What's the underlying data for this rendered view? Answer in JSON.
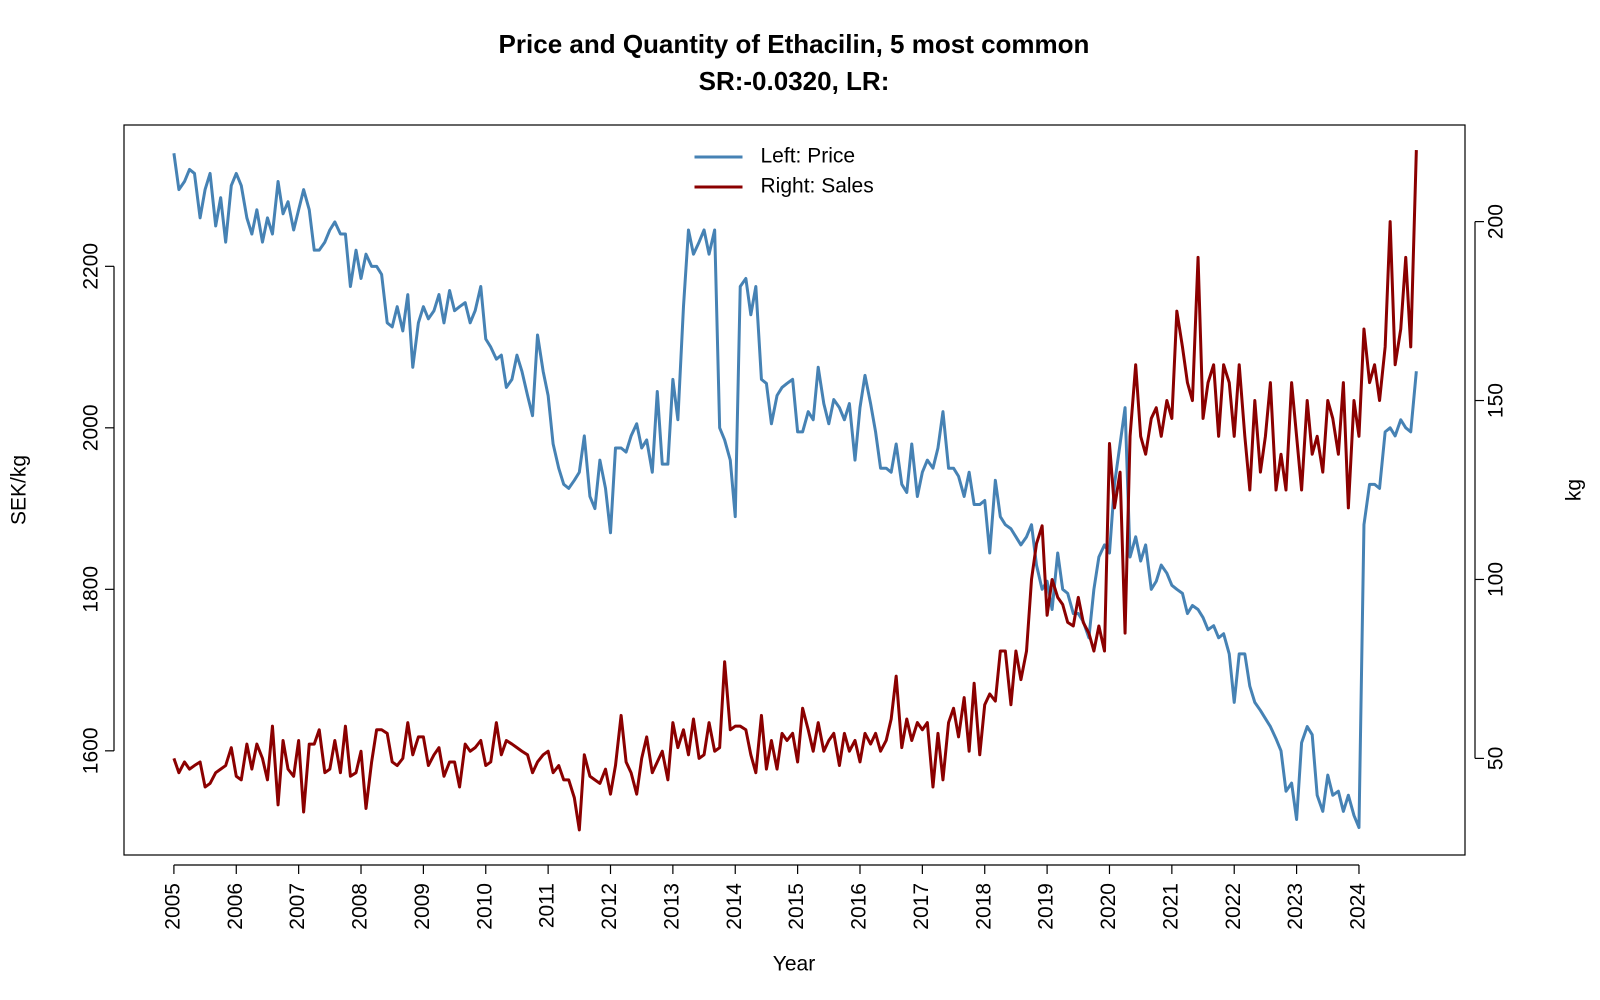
{
  "chart_data": {
    "type": "line",
    "title": "Price and Quantity of Ethacilin, 5 most common",
    "subtitle": "SR:-0.0320, LR:",
    "x_label": "Year",
    "y_label": "SEK/kg",
    "y2_label": "kg",
    "legend": "top",
    "xlim": [
      2004.2,
      2025.7
    ],
    "xticks": [
      2005,
      2006,
      2007,
      2008,
      2009,
      2010,
      2011,
      2012,
      2013,
      2014,
      2015,
      2016,
      2017,
      2018,
      2019,
      2020,
      2021,
      2022,
      2023,
      2024
    ],
    "ylim": [
      1471,
      2375
    ],
    "yticks": [
      1600,
      1800,
      2000,
      2200
    ],
    "y2lim": [
      23,
      227
    ],
    "y2ticks": [
      50,
      100,
      150,
      200
    ],
    "x": [
      2005,
      2005.08,
      2005.17,
      2005.25,
      2005.33,
      2005.42,
      2005.5,
      2005.58,
      2005.67,
      2005.75,
      2005.83,
      2005.92,
      2006,
      2006.08,
      2006.17,
      2006.25,
      2006.33,
      2006.42,
      2006.5,
      2006.58,
      2006.67,
      2006.75,
      2006.83,
      2006.92,
      2007,
      2007.08,
      2007.17,
      2007.25,
      2007.33,
      2007.42,
      2007.5,
      2007.58,
      2007.67,
      2007.75,
      2007.83,
      2007.92,
      2008,
      2008.08,
      2008.17,
      2008.25,
      2008.33,
      2008.42,
      2008.5,
      2008.58,
      2008.67,
      2008.75,
      2008.83,
      2008.92,
      2009,
      2009.08,
      2009.17,
      2009.25,
      2009.33,
      2009.42,
      2009.5,
      2009.58,
      2009.67,
      2009.75,
      2009.83,
      2009.92,
      2010,
      2010.08,
      2010.17,
      2010.25,
      2010.33,
      2010.42,
      2010.5,
      2010.58,
      2010.67,
      2010.75,
      2010.83,
      2010.92,
      2011,
      2011.08,
      2011.17,
      2011.25,
      2011.33,
      2011.42,
      2011.5,
      2011.58,
      2011.67,
      2011.75,
      2011.83,
      2011.92,
      2012,
      2012.08,
      2012.17,
      2012.25,
      2012.33,
      2012.42,
      2012.5,
      2012.58,
      2012.67,
      2012.75,
      2012.83,
      2012.92,
      2013,
      2013.08,
      2013.17,
      2013.25,
      2013.33,
      2013.42,
      2013.5,
      2013.58,
      2013.67,
      2013.75,
      2013.83,
      2013.92,
      2014,
      2014.08,
      2014.17,
      2014.25,
      2014.33,
      2014.42,
      2014.5,
      2014.58,
      2014.67,
      2014.75,
      2014.83,
      2014.92,
      2015,
      2015.08,
      2015.17,
      2015.25,
      2015.33,
      2015.42,
      2015.5,
      2015.58,
      2015.67,
      2015.75,
      2015.83,
      2015.92,
      2016,
      2016.08,
      2016.17,
      2016.25,
      2016.33,
      2016.42,
      2016.5,
      2016.58,
      2016.67,
      2016.75,
      2016.83,
      2016.92,
      2017,
      2017.08,
      2017.17,
      2017.25,
      2017.33,
      2017.42,
      2017.5,
      2017.58,
      2017.67,
      2017.75,
      2017.83,
      2017.92,
      2018,
      2018.08,
      2018.17,
      2018.25,
      2018.33,
      2018.42,
      2018.5,
      2018.58,
      2018.67,
      2018.75,
      2018.83,
      2018.92,
      2019,
      2019.08,
      2019.17,
      2019.25,
      2019.33,
      2019.42,
      2019.5,
      2019.58,
      2019.67,
      2019.75,
      2019.83,
      2019.92,
      2020,
      2020.08,
      2020.17,
      2020.25,
      2020.33,
      2020.42,
      2020.5,
      2020.58,
      2020.67,
      2020.75,
      2020.83,
      2020.92,
      2021,
      2021.08,
      2021.17,
      2021.25,
      2021.33,
      2021.42,
      2021.5,
      2021.58,
      2021.67,
      2021.75,
      2021.83,
      2021.92,
      2022,
      2022.08,
      2022.17,
      2022.25,
      2022.33,
      2022.42,
      2022.5,
      2022.58,
      2022.67,
      2022.75,
      2022.83,
      2022.92,
      2023,
      2023.08,
      2023.17,
      2023.25,
      2023.33,
      2023.42,
      2023.5,
      2023.58,
      2023.67,
      2023.75,
      2023.83,
      2023.92,
      2024,
      2024.08,
      2024.17,
      2024.25,
      2024.33,
      2024.42,
      2024.5,
      2024.58,
      2024.67,
      2024.75,
      2024.83,
      2024.92
    ],
    "series": [
      {
        "name": "Left: Price",
        "color": "#4682b4",
        "axis": "y",
        "values": [
          2340,
          2295,
          2305,
          2320,
          2315,
          2260,
          2295,
          2315,
          2250,
          2285,
          2230,
          2300,
          2315,
          2300,
          2260,
          2240,
          2270,
          2230,
          2260,
          2240,
          2305,
          2265,
          2280,
          2245,
          2270,
          2295,
          2270,
          2220,
          2220,
          2230,
          2245,
          2255,
          2240,
          2240,
          2175,
          2220,
          2185,
          2215,
          2200,
          2200,
          2190,
          2130,
          2125,
          2150,
          2120,
          2165,
          2075,
          2130,
          2150,
          2135,
          2145,
          2165,
          2130,
          2170,
          2145,
          2150,
          2155,
          2130,
          2145,
          2175,
          2110,
          2100,
          2085,
          2090,
          2050,
          2060,
          2090,
          2070,
          2040,
          2015,
          2115,
          2070,
          2040,
          1980,
          1950,
          1930,
          1925,
          1935,
          1945,
          1990,
          1915,
          1900,
          1960,
          1925,
          1870,
          1975,
          1975,
          1970,
          1990,
          2005,
          1975,
          1985,
          1945,
          2045,
          1955,
          1955,
          2060,
          2010,
          2150,
          2245,
          2215,
          2230,
          2245,
          2215,
          2245,
          2000,
          1985,
          1960,
          1890,
          2175,
          2185,
          2140,
          2175,
          2060,
          2055,
          2005,
          2040,
          2050,
          2055,
          2060,
          1995,
          1995,
          2020,
          2010,
          2075,
          2030,
          2005,
          2035,
          2025,
          2010,
          2030,
          1960,
          2025,
          2065,
          2030,
          1995,
          1950,
          1950,
          1945,
          1980,
          1930,
          1920,
          1980,
          1915,
          1945,
          1960,
          1950,
          1975,
          2020,
          1950,
          1950,
          1940,
          1915,
          1945,
          1905,
          1905,
          1910,
          1845,
          1935,
          1890,
          1880,
          1875,
          1865,
          1855,
          1865,
          1880,
          1830,
          1800,
          1810,
          1775,
          1845,
          1800,
          1795,
          1770,
          1770,
          1760,
          1740,
          1800,
          1840,
          1855,
          1845,
          1930,
          1980,
          2025,
          1840,
          1865,
          1835,
          1855,
          1800,
          1810,
          1830,
          1820,
          1805,
          1800,
          1795,
          1770,
          1780,
          1775,
          1765,
          1750,
          1755,
          1740,
          1745,
          1720,
          1660,
          1720,
          1720,
          1680,
          1660,
          1650,
          1640,
          1630,
          1615,
          1600,
          1550,
          1560,
          1515,
          1610,
          1630,
          1620,
          1545,
          1525,
          1570,
          1545,
          1550,
          1525,
          1545,
          1520,
          1505,
          1880,
          1930,
          1930,
          1925,
          1995,
          2000,
          1990,
          2010,
          2000,
          1995,
          2070
        ]
      },
      {
        "name": "Right: Sales",
        "color": "#8b0000",
        "axis": "y2",
        "values": [
          50,
          46,
          49,
          47,
          48,
          49,
          42,
          43,
          46,
          47,
          48,
          53,
          45,
          44,
          54,
          47,
          54,
          50,
          44,
          59,
          37,
          55,
          47,
          45,
          55,
          35,
          54,
          54,
          58,
          46,
          47,
          55,
          46,
          59,
          45,
          46,
          52,
          36,
          49,
          58,
          58,
          57,
          49,
          48,
          50,
          60,
          51,
          56,
          56,
          48,
          51,
          53,
          45,
          49,
          49,
          42,
          54,
          52,
          53,
          55,
          48,
          49,
          60,
          51,
          55,
          54,
          53,
          52,
          51,
          46,
          49,
          51,
          52,
          46,
          48,
          44,
          44,
          39,
          30,
          51,
          45,
          44,
          43,
          47,
          40,
          48,
          62,
          49,
          46,
          40,
          50,
          56,
          46,
          49,
          52,
          44,
          60,
          53,
          58,
          51,
          61,
          50,
          51,
          60,
          52,
          53,
          77,
          58,
          59,
          59,
          58,
          51,
          46,
          62,
          47,
          55,
          47,
          57,
          55,
          57,
          49,
          64,
          58,
          52,
          60,
          52,
          55,
          57,
          48,
          57,
          52,
          55,
          49,
          57,
          54,
          57,
          52,
          55,
          61,
          73,
          53,
          61,
          55,
          60,
          58,
          60,
          42,
          57,
          44,
          60,
          64,
          56,
          67,
          52,
          71,
          51,
          65,
          68,
          66,
          80,
          80,
          65,
          80,
          72,
          80,
          100,
          110,
          115,
          90,
          100,
          95,
          93,
          88,
          87,
          95,
          88,
          85,
          80,
          87,
          80,
          138,
          120,
          130,
          85,
          140,
          160,
          140,
          135,
          145,
          148,
          140,
          150,
          145,
          175,
          165,
          155,
          150,
          190,
          145,
          155,
          160,
          140,
          160,
          155,
          140,
          160,
          140,
          125,
          150,
          130,
          140,
          155,
          125,
          135,
          125,
          155,
          140,
          125,
          150,
          135,
          140,
          130,
          150,
          145,
          135,
          155,
          120,
          150,
          140,
          170,
          155,
          160,
          150,
          165,
          200,
          160,
          170,
          190,
          165,
          220
        ]
      }
    ]
  }
}
